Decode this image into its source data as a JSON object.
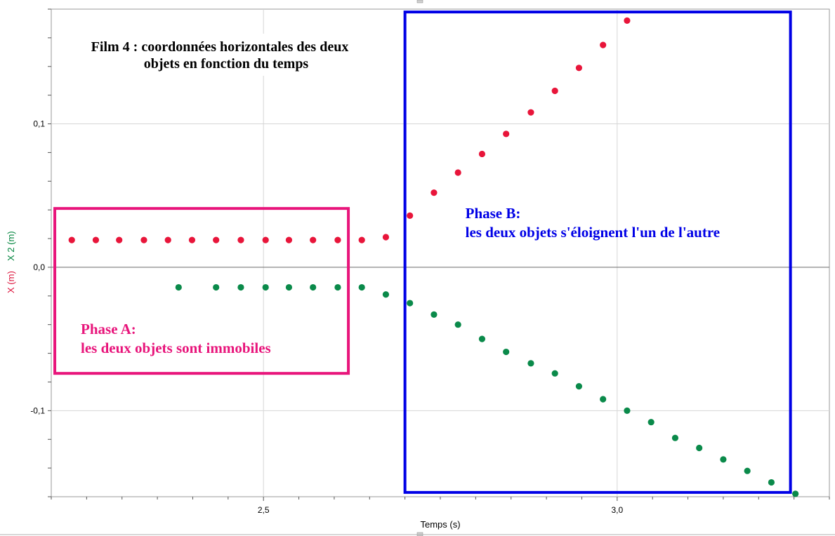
{
  "chart_data": {
    "type": "scatter",
    "title": [
      "Film 4 : coordonnées horizontales des deux",
      "objets en fonction du temps"
    ],
    "xlabel": "Temps (s)",
    "ylabels": [
      {
        "text": "X (m)",
        "color": "#dc143c"
      },
      {
        "text": "X 2 (m)",
        "color": "#00843d"
      }
    ],
    "xlim": [
      2.2,
      3.3
    ],
    "ylim": [
      -0.16,
      0.18
    ],
    "grid": true,
    "x_tick_labels": [
      {
        "value": 2.5,
        "label": "2,5"
      },
      {
        "value": 3.0,
        "label": "3,0"
      }
    ],
    "y_tick_labels": [
      {
        "value": 0.1,
        "label": "0,1"
      },
      {
        "value": 0.0,
        "label": "0,0"
      },
      {
        "value": -0.1,
        "label": "-0,1"
      }
    ],
    "series": [
      {
        "color": "#e8153a",
        "x": [
          2.229,
          2.263,
          2.296,
          2.331,
          2.365,
          2.399,
          2.433,
          2.468,
          2.503,
          2.536,
          2.57,
          2.605,
          2.639,
          2.673,
          2.707,
          2.741,
          2.775,
          2.809,
          2.843,
          2.878,
          2.912,
          2.946,
          2.98,
          3.014
        ],
        "y": [
          0.019,
          0.019,
          0.019,
          0.019,
          0.019,
          0.019,
          0.019,
          0.019,
          0.019,
          0.019,
          0.019,
          0.019,
          0.019,
          0.021,
          0.036,
          0.052,
          0.066,
          0.079,
          0.093,
          0.108,
          0.123,
          0.139,
          0.155,
          0.172
        ]
      },
      {
        "color": "#0a8a4a",
        "x": [
          2.38,
          2.433,
          2.468,
          2.503,
          2.536,
          2.57,
          2.605,
          2.639,
          2.673,
          2.707,
          2.741,
          2.775,
          2.809,
          2.843,
          2.878,
          2.912,
          2.946,
          2.98,
          3.014,
          3.048,
          3.082,
          3.116,
          3.15,
          3.184,
          3.218,
          3.252
        ],
        "y": [
          -0.014,
          -0.014,
          -0.014,
          -0.014,
          -0.014,
          -0.014,
          -0.014,
          -0.014,
          -0.019,
          -0.025,
          -0.033,
          -0.04,
          -0.05,
          -0.059,
          -0.067,
          -0.074,
          -0.083,
          -0.092,
          -0.1,
          -0.108,
          -0.119,
          -0.126,
          -0.134,
          -0.142,
          -0.15,
          -0.158
        ]
      }
    ],
    "annotations": [
      {
        "name": "phase-a",
        "lines": [
          "Phase A:",
          "les deux objets sont immobiles"
        ],
        "color": "#e8157b",
        "x_range": [
          2.205,
          2.62
        ],
        "y_range": [
          -0.074,
          0.041
        ]
      },
      {
        "name": "phase-b",
        "lines": [
          "Phase B:",
          "les deux objets s'éloignent l'un de l'autre"
        ],
        "color": "#0000e6",
        "x_range": [
          2.7,
          3.245
        ],
        "y_range": [
          -0.157,
          0.178
        ]
      }
    ]
  }
}
